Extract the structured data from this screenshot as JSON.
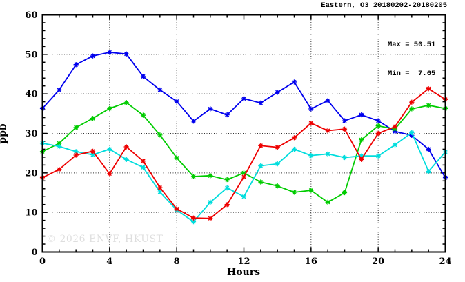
{
  "header": {
    "title": "Eastern, O3 20180202-20180205"
  },
  "stats_box": {
    "max_line": "Max = 50.51",
    "min_line": "Min =  7.65"
  },
  "watermark": "© 2026 ENVF, HKUST",
  "axes": {
    "xlabel": "Hours",
    "ylabel": "ppb"
  },
  "chart_data": {
    "type": "line",
    "title": "Eastern, O3 20180202-20180205",
    "xlabel": "Hours",
    "ylabel": "ppb",
    "xlim": [
      0,
      24
    ],
    "ylim": [
      0,
      60
    ],
    "x_major_ticks": [
      0,
      4,
      8,
      12,
      16,
      20,
      24
    ],
    "x_minor_step": 1,
    "y_major_ticks": [
      0,
      10,
      20,
      30,
      40,
      50,
      60
    ],
    "y_minor_step": 2,
    "grid": "dotted-at-major-ticks",
    "legend_position": "none",
    "annotations": {
      "max": 50.51,
      "min": 7.65
    },
    "x": [
      0,
      1,
      2,
      3,
      4,
      5,
      6,
      7,
      8,
      9,
      10,
      11,
      12,
      13,
      14,
      15,
      16,
      17,
      18,
      19,
      20,
      21,
      22,
      23,
      24
    ],
    "series": [
      {
        "name": "blue",
        "color": "#0000ee",
        "values": [
          36.3,
          41.0,
          47.4,
          49.6,
          50.51,
          50.1,
          44.4,
          41.0,
          38.1,
          33.1,
          36.2,
          34.7,
          38.8,
          37.7,
          40.4,
          43.0,
          36.2,
          38.3,
          33.2,
          34.7,
          33.2,
          30.5,
          29.5,
          26.0,
          18.8
        ]
      },
      {
        "name": "green",
        "color": "#00cc00",
        "values": [
          25.4,
          27.5,
          31.5,
          33.8,
          36.3,
          37.8,
          34.6,
          29.6,
          23.8,
          19.1,
          19.3,
          18.3,
          20.0,
          17.7,
          16.7,
          15.1,
          15.6,
          12.6,
          15.0,
          28.4,
          31.9,
          31.1,
          36.2,
          37.1,
          36.3
        ]
      },
      {
        "name": "cyan",
        "color": "#00dddd",
        "values": [
          27.5,
          26.7,
          25.4,
          24.6,
          26.0,
          23.4,
          21.4,
          15.2,
          10.6,
          7.65,
          12.6,
          16.2,
          14.0,
          21.8,
          22.3,
          26.0,
          24.4,
          24.8,
          23.9,
          24.3,
          24.3,
          27.1,
          30.2,
          20.4,
          25.3
        ]
      },
      {
        "name": "red",
        "color": "#ee0000",
        "values": [
          18.8,
          20.9,
          24.5,
          25.5,
          19.8,
          26.6,
          23.0,
          16.3,
          10.9,
          8.6,
          8.5,
          12.0,
          19.0,
          26.9,
          26.5,
          28.9,
          32.6,
          30.7,
          31.1,
          23.4,
          30.0,
          31.7,
          37.9,
          41.3,
          38.6
        ]
      }
    ]
  }
}
